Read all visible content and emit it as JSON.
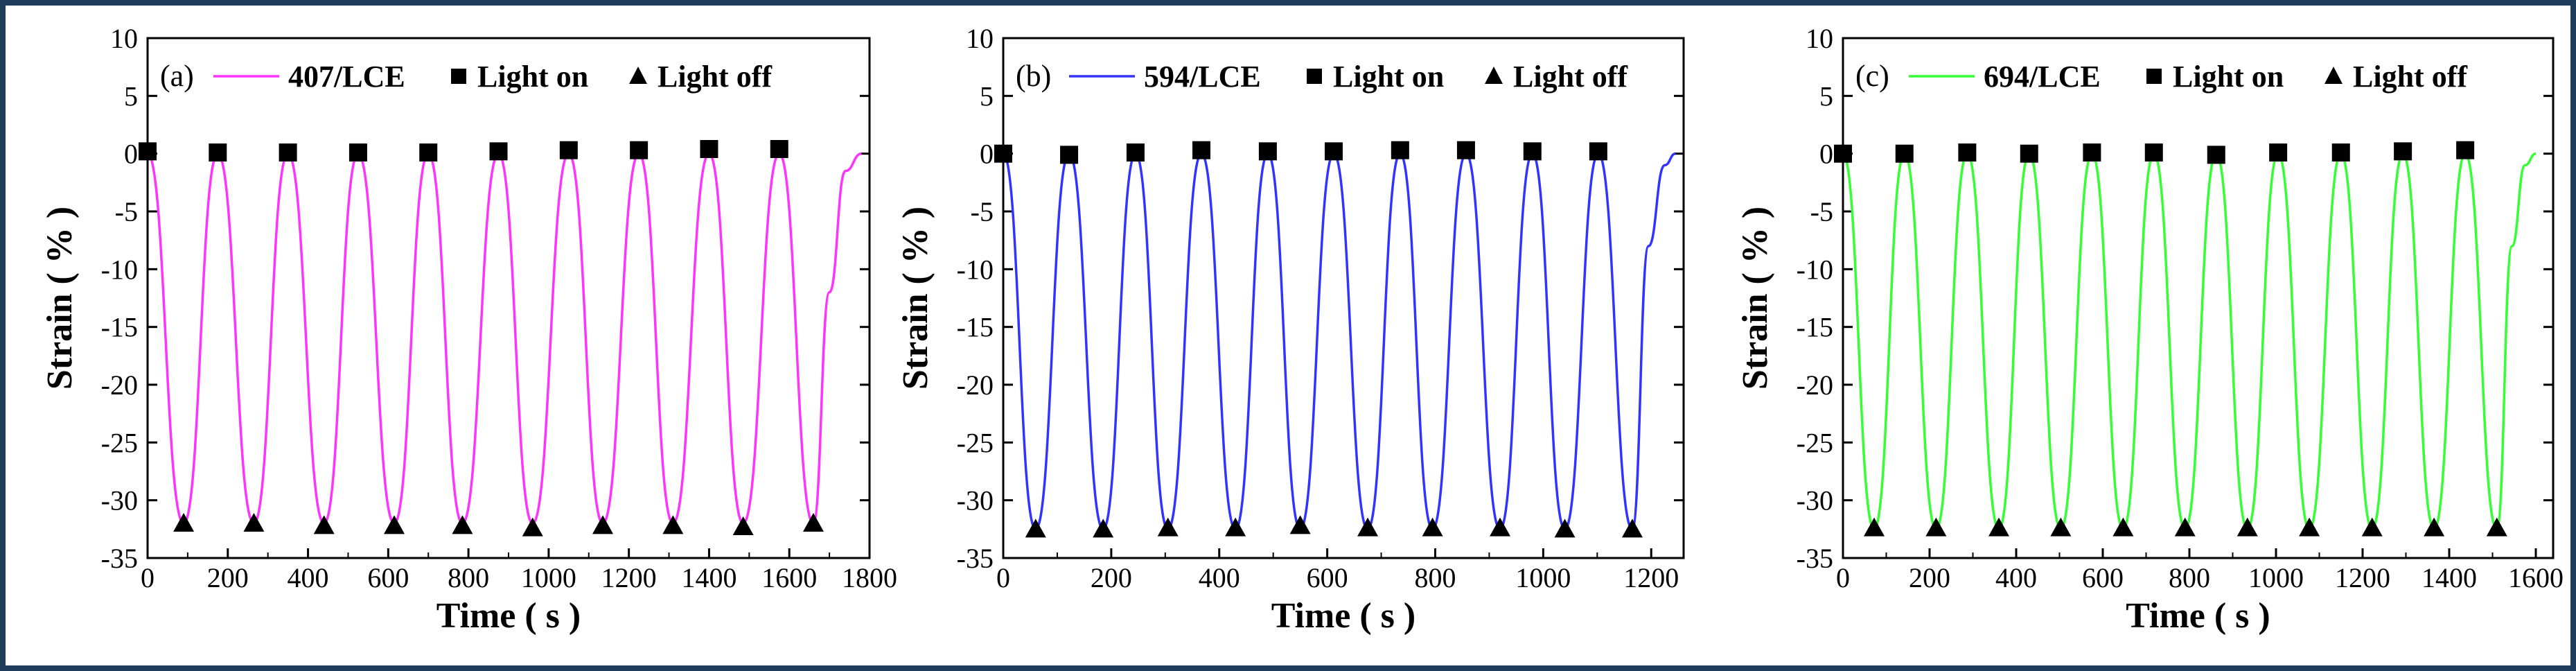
{
  "chart_data": [
    {
      "type": "line",
      "panel_label": "(a)",
      "xlabel": "Time ( s )",
      "ylabel": "Strain ( % )",
      "xlim": [
        0,
        1800
      ],
      "ylim": [
        -35,
        10
      ],
      "x_ticks": [
        0,
        200,
        400,
        600,
        800,
        1000,
        1200,
        1400,
        1600,
        1800
      ],
      "y_ticks": [
        10,
        5,
        0,
        -5,
        -10,
        -15,
        -20,
        -25,
        -30,
        -35
      ],
      "color": "#ff33ff",
      "series": [
        {
          "name": "407/LCE",
          "marker": "line",
          "x": [
            0,
            90,
            175,
            265,
            350,
            440,
            525,
            615,
            700,
            785,
            875,
            960,
            1050,
            1135,
            1225,
            1310,
            1400,
            1485,
            1575,
            1660,
            1700,
            1740,
            1780
          ],
          "y": [
            0,
            -32,
            0,
            -32,
            0,
            -32,
            0,
            -32,
            0,
            -32,
            0,
            -32,
            0,
            -32,
            0,
            -32,
            0,
            -32,
            0,
            -32,
            -12,
            -1.5,
            0
          ]
        },
        {
          "name": "Light on",
          "marker": "square",
          "x": [
            0,
            175,
            350,
            525,
            700,
            875,
            1050,
            1225,
            1400,
            1575
          ],
          "y": [
            0.2,
            0.1,
            0.1,
            0.1,
            0.1,
            0.2,
            0.3,
            0.3,
            0.4,
            0.4
          ]
        },
        {
          "name": "Light off",
          "marker": "triangle",
          "x": [
            90,
            265,
            440,
            615,
            785,
            960,
            1135,
            1310,
            1485,
            1660
          ],
          "y": [
            -32,
            -32,
            -32.2,
            -32.2,
            -32.2,
            -32.4,
            -32.2,
            -32.2,
            -32.3,
            -32
          ]
        }
      ]
    },
    {
      "type": "line",
      "panel_label": "(b)",
      "xlabel": "Time ( s )",
      "ylabel": "Strain ( % )",
      "xlim": [
        0,
        1260
      ],
      "ylim": [
        -35,
        10
      ],
      "x_ticks": [
        0,
        200,
        400,
        600,
        800,
        1000,
        1200
      ],
      "y_ticks": [
        10,
        5,
        0,
        -5,
        -10,
        -15,
        -20,
        -25,
        -30,
        -35
      ],
      "color": "#3333ff",
      "series": [
        {
          "name": "594/LCE",
          "marker": "line",
          "x": [
            0,
            60,
            122,
            185,
            245,
            305,
            367,
            430,
            490,
            550,
            612,
            675,
            735,
            795,
            857,
            920,
            980,
            1040,
            1102,
            1165,
            1195,
            1225,
            1245
          ],
          "y": [
            0,
            -32.5,
            0,
            -32.5,
            0,
            -32.5,
            0,
            -32.5,
            0,
            -32.5,
            0,
            -32.5,
            0,
            -32.5,
            0,
            -32.5,
            0,
            -32.5,
            0,
            -32.5,
            -8,
            -1,
            0
          ]
        },
        {
          "name": "Light on",
          "marker": "square",
          "x": [
            0,
            122,
            245,
            367,
            490,
            612,
            735,
            857,
            980,
            1102
          ],
          "y": [
            0,
            -0.1,
            0.1,
            0.3,
            0.2,
            0.2,
            0.3,
            0.3,
            0.2,
            0.2
          ]
        },
        {
          "name": "Light off",
          "marker": "triangle",
          "x": [
            60,
            185,
            305,
            430,
            550,
            675,
            795,
            920,
            1040,
            1165
          ],
          "y": [
            -32.5,
            -32.5,
            -32.4,
            -32.4,
            -32.2,
            -32.4,
            -32.4,
            -32.4,
            -32.5,
            -32.5
          ]
        }
      ]
    },
    {
      "type": "line",
      "panel_label": "(c)",
      "xlabel": "Time ( s )",
      "ylabel": "Strain ( % )",
      "xlim": [
        0,
        1640
      ],
      "ylim": [
        -35,
        10
      ],
      "x_ticks": [
        0,
        200,
        400,
        600,
        800,
        1000,
        1200,
        1400,
        1600
      ],
      "y_ticks": [
        10,
        5,
        0,
        -5,
        -10,
        -15,
        -20,
        -25,
        -30,
        -35
      ],
      "color": "#33ff33",
      "series": [
        {
          "name": "694/LCE",
          "marker": "line",
          "x": [
            0,
            72,
            142,
            215,
            287,
            360,
            430,
            503,
            575,
            647,
            718,
            790,
            862,
            934,
            1005,
            1077,
            1150,
            1222,
            1293,
            1365,
            1437,
            1510,
            1545,
            1575,
            1600
          ],
          "y": [
            0,
            -32.5,
            0,
            -32.5,
            0,
            -32.5,
            0,
            -32.5,
            0,
            -32.5,
            0,
            -32.5,
            0,
            -32.5,
            0,
            -32.5,
            0,
            -32.5,
            0,
            -32.5,
            0,
            -32.5,
            -8,
            -1,
            0
          ]
        },
        {
          "name": "Light on",
          "marker": "square",
          "x": [
            0,
            142,
            287,
            430,
            575,
            718,
            862,
            1005,
            1150,
            1293,
            1437
          ],
          "y": [
            0,
            0,
            0.1,
            0,
            0.1,
            0.1,
            -0.1,
            0.1,
            0.1,
            0.2,
            0.3
          ]
        },
        {
          "name": "Light off",
          "marker": "triangle",
          "x": [
            72,
            215,
            360,
            503,
            647,
            790,
            934,
            1077,
            1222,
            1365,
            1510
          ],
          "y": [
            -32.4,
            -32.4,
            -32.4,
            -32.4,
            -32.4,
            -32.4,
            -32.4,
            -32.4,
            -32.4,
            -32.4,
            -32.4
          ]
        }
      ]
    }
  ]
}
